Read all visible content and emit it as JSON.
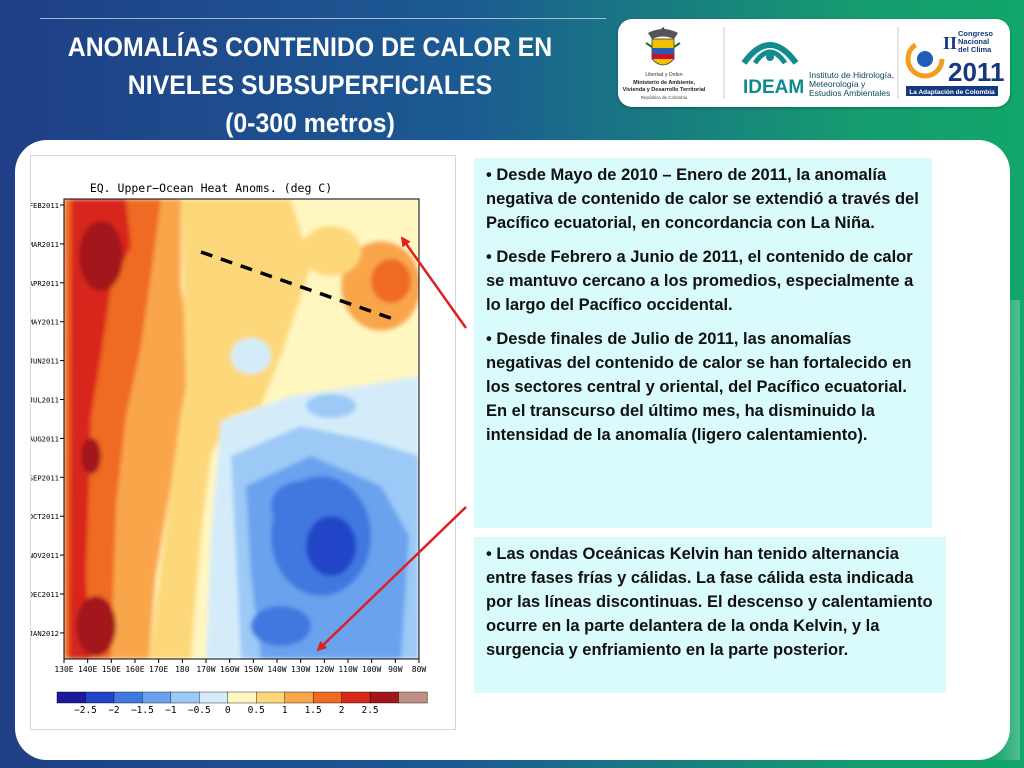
{
  "slide": {
    "title_lines": [
      "ANOMALÍAS CONTENIDO DE CALOR EN",
      "NIVELES SUBSUPERFICIALES",
      "(0-300 metros)"
    ],
    "colors": {
      "accent_blue": "#1f3f86",
      "accent_green": "#12a66a",
      "text_box_bg": "#d9fbfb",
      "arrow": "#e02020"
    }
  },
  "logos": {
    "gov_text_lines": [
      "Libertad y Orden",
      "Ministerio de Ambiente,",
      "Vivienda y Desarrollo Territorial",
      "República de Colombia"
    ],
    "ideam_name": "IDEAM",
    "ideam_text_lines": [
      "Instituto de Hidrología,",
      "Meteorología y",
      "Estudios Ambientales"
    ],
    "congress_roman": "II",
    "congress_word1": "Congreso",
    "congress_word2": "Nacional",
    "congress_word3": "del Clima",
    "congress_year": "2011",
    "congress_subtitle": "La Adaptación de Colombia"
  },
  "chart_data": {
    "type": "heatmap",
    "title": "EQ. Upper−Ocean Heat Anoms. (deg C)",
    "xticks": [
      "130E",
      "140E",
      "150E",
      "160E",
      "170E",
      "180",
      "170W",
      "160W",
      "150W",
      "140W",
      "130W",
      "120W",
      "110W",
      "100W",
      "90W",
      "80W"
    ],
    "yticks": [
      "FEB2011",
      "MAR2011",
      "APR2011",
      "MAY2011",
      "JUN2011",
      "JUL2011",
      "AUG2011",
      "SEP2011",
      "OCT2011",
      "NOV2011",
      "DEC2011",
      "JAN2012"
    ],
    "colorbar": {
      "labels": [
        "−2.5",
        "−2",
        "−1.5",
        "−1",
        "−0.5",
        "0",
        "0.5",
        "1",
        "1.5",
        "2",
        "2.5"
      ],
      "colors": [
        "#1a1a9c",
        "#2244c8",
        "#3f78e0",
        "#6aa2ee",
        "#9cc9f5",
        "#d4ecfa",
        "#fff6c0",
        "#fdd87a",
        "#f9a64b",
        "#ef6a22",
        "#d8281b",
        "#a2161b",
        "#bf8f86"
      ]
    },
    "annotation": "dashed line marking warm Kelvin wave phase"
  },
  "text_box_1": {
    "bullets": [
      "• Desde Mayo de 2010 – Enero de 2011, la anomalía negativa de contenido de calor  se extendió a través del Pacífico ecuatorial, en concordancia con La Niña.",
      "• Desde Febrero a Junio de 2011, el contenido de calor se mantuvo cercano a los promedios, especialmente a lo largo del Pacífico occidental.",
      "• Desde finales de Julio de 2011, las anomalías negativas del contenido de calor  se han fortalecido en los sectores central y oriental, del Pacífico ecuatorial. En el transcurso del último mes, ha disminuido la intensidad de la anomalía (ligero calentamiento)."
    ]
  },
  "text_box_2": {
    "bullets": [
      "• Las ondas Oceánicas Kelvin han tenido alternancia entre fases frías y cálidas. La fase cálida esta indicada por las líneas discontinuas. El descenso y calentamiento ocurre en la parte delantera de la onda Kelvin, y la surgencia y enfriamiento en la parte posterior."
    ]
  }
}
